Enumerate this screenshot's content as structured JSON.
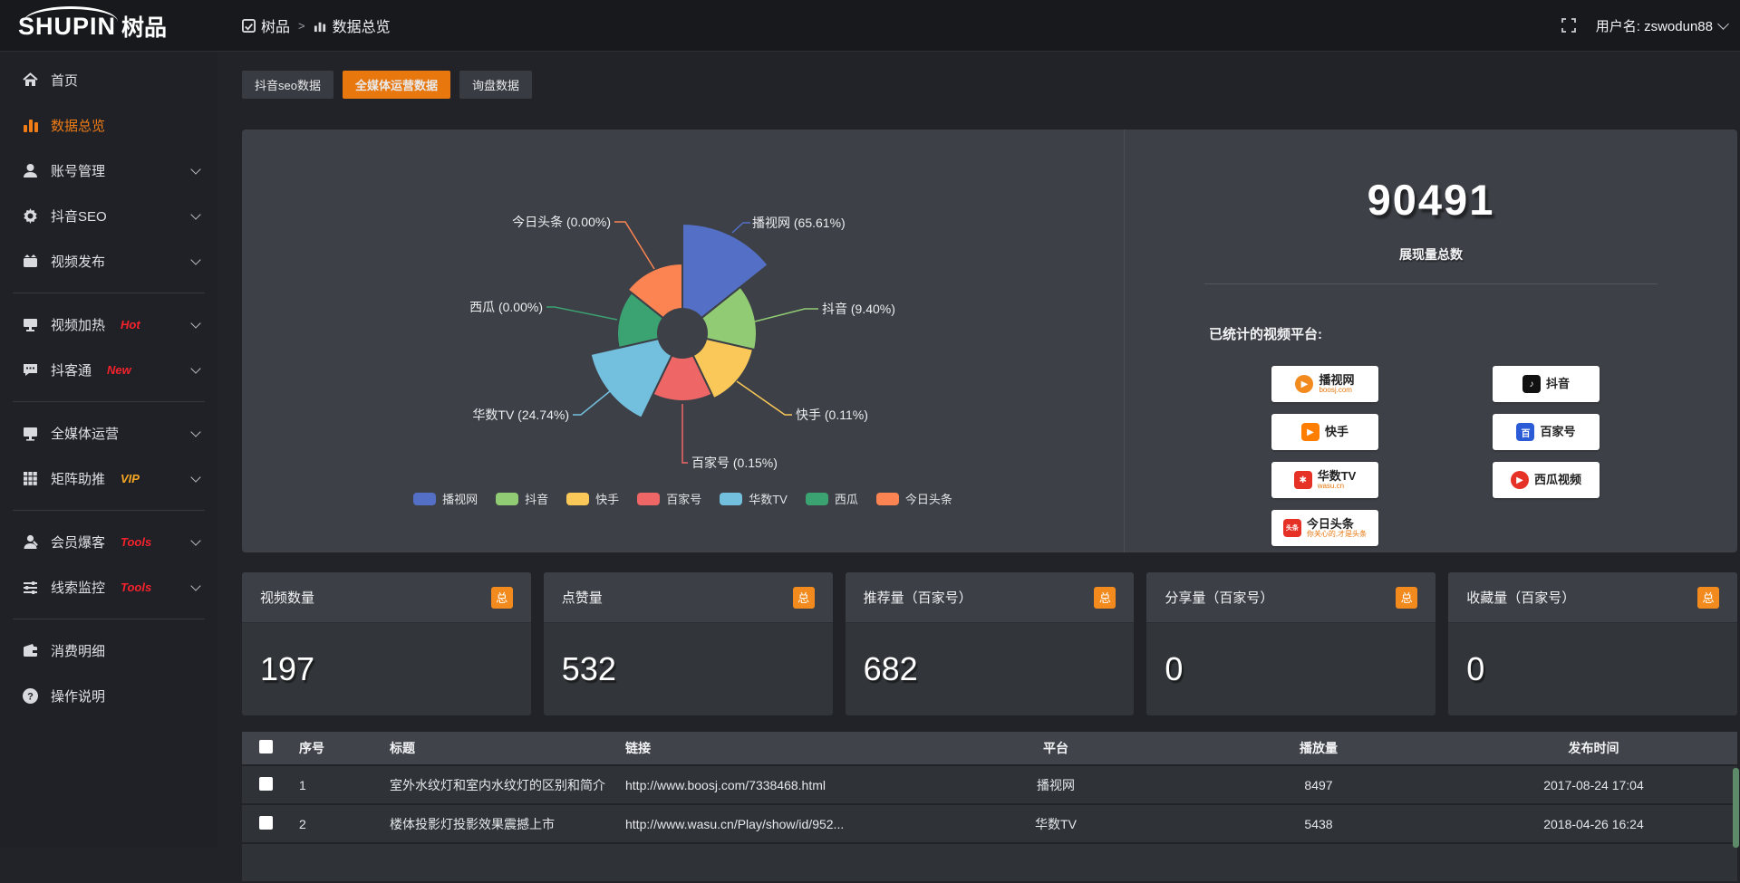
{
  "header": {
    "logo_main": "SHUPIN",
    "logo_cn": "树品",
    "breadcrumb": {
      "root": "树品",
      "separator": ">",
      "current": "数据总览"
    },
    "user_label": "用户名: zswodun88"
  },
  "sidebar": {
    "items": [
      {
        "label": "首页",
        "icon": "home-icon",
        "chevron": false
      },
      {
        "label": "数据总览",
        "icon": "chart-icon",
        "chevron": false,
        "active": true
      },
      {
        "label": "账号管理",
        "icon": "user-icon",
        "chevron": true
      },
      {
        "label": "抖音SEO",
        "icon": "gear-icon",
        "chevron": true
      },
      {
        "label": "视频发布",
        "icon": "publish-icon",
        "chevron": true
      },
      {
        "divider": true
      },
      {
        "label": "视频加热",
        "icon": "heat-icon",
        "badge": "Hot",
        "badge_color": "#f5222d",
        "chevron": true
      },
      {
        "label": "抖客通",
        "icon": "chat-icon",
        "badge": "New",
        "badge_color": "#f5222d",
        "chevron": true
      },
      {
        "divider": true
      },
      {
        "label": "全媒体运营",
        "icon": "monitor-icon",
        "chevron": true
      },
      {
        "label": "矩阵助推",
        "icon": "grid-icon",
        "badge": "VIP",
        "badge_color": "#f5a623",
        "chevron": true
      },
      {
        "divider": true
      },
      {
        "label": "会员爆客",
        "icon": "member-icon",
        "badge": "Tools",
        "badge_color": "#f5222d",
        "chevron": true
      },
      {
        "label": "线索监控",
        "icon": "sliders-icon",
        "badge": "Tools",
        "badge_color": "#f5222d",
        "chevron": true
      },
      {
        "divider": true
      },
      {
        "label": "消费明细",
        "icon": "wallet-icon",
        "chevron": false
      },
      {
        "label": "操作说明",
        "icon": "help-icon",
        "chevron": false
      }
    ]
  },
  "tabs": [
    {
      "label": "抖音seo数据",
      "active": false
    },
    {
      "label": "全媒体运营数据",
      "active": true
    },
    {
      "label": "询盘数据",
      "active": false
    }
  ],
  "chart_data": {
    "type": "pie",
    "variant": "nightingale-rose",
    "legend_position": "bottom",
    "label_format": "{name} ({percent}%)",
    "series": [
      {
        "name": "播视网",
        "percent": "65.61",
        "color": "#5470c6"
      },
      {
        "name": "抖音",
        "percent": "9.40",
        "color": "#91cc75"
      },
      {
        "name": "快手",
        "percent": "0.11",
        "color": "#fac858"
      },
      {
        "name": "百家号",
        "percent": "0.15",
        "color": "#ee6666"
      },
      {
        "name": "华数TV",
        "percent": "24.74",
        "color": "#73c0de"
      },
      {
        "name": "西瓜",
        "percent": "0.00",
        "color": "#3ba272"
      },
      {
        "name": "今日头条",
        "percent": "0.00",
        "color": "#fc8452"
      }
    ]
  },
  "overview": {
    "total": "90491",
    "total_label": "展现量总数",
    "platforms_label": "已统计的视频平台:",
    "platforms": [
      {
        "name": "播视网",
        "sub": "boosj.com",
        "logo_color": "#f28a1d",
        "logo_glyph": "▶",
        "logo_shape": "circle"
      },
      {
        "name": "抖音",
        "sub": "",
        "logo_color": "#111111",
        "logo_glyph": "♪",
        "logo_shape": "square"
      },
      {
        "name": "快手",
        "sub": "",
        "logo_color": "#ff7e00",
        "logo_glyph": "▶",
        "logo_shape": "square"
      },
      {
        "name": "百家号",
        "sub": "",
        "logo_color": "#2b5bd7",
        "logo_glyph": "百",
        "logo_shape": "square"
      },
      {
        "name": "华数TV",
        "sub": "wasu.cn",
        "logo_color": "#e63226",
        "logo_glyph": "✱",
        "logo_shape": "square"
      },
      {
        "name": "西瓜视频",
        "sub": "",
        "logo_color": "#e63226",
        "logo_glyph": "▶",
        "logo_shape": "circle"
      },
      {
        "name": "今日头条",
        "sub": "你关心的,才是头条",
        "logo_color": "#e63226",
        "logo_glyph": "头条",
        "logo_shape": "square"
      }
    ]
  },
  "stat_cards": [
    {
      "title": "视频数量",
      "badge": "总",
      "value": "197"
    },
    {
      "title": "点赞量",
      "badge": "总",
      "value": "532"
    },
    {
      "title": "推荐量（百家号）",
      "badge": "总",
      "value": "682"
    },
    {
      "title": "分享量（百家号）",
      "badge": "总",
      "value": "0"
    },
    {
      "title": "收藏量（百家号）",
      "badge": "总",
      "value": "0"
    }
  ],
  "table": {
    "columns": [
      "序号",
      "标题",
      "链接",
      "平台",
      "播放量",
      "发布时间"
    ],
    "rows": [
      {
        "num": "1",
        "title": "室外水纹灯和室内水纹灯的区别和简介",
        "link": "http://www.boosj.com/7338468.html",
        "platform": "播视网",
        "plays": "8497",
        "time": "2017-08-24 17:04"
      },
      {
        "num": "2",
        "title": "楼体投影灯投影效果震撼上市",
        "link": "http://www.wasu.cn/Play/show/id/952...",
        "platform": "华数TV",
        "plays": "5438",
        "time": "2018-04-26 16:24"
      },
      {
        "num": "",
        "title": "",
        "link": "",
        "platform": "",
        "plays": "",
        "time": ""
      }
    ]
  }
}
